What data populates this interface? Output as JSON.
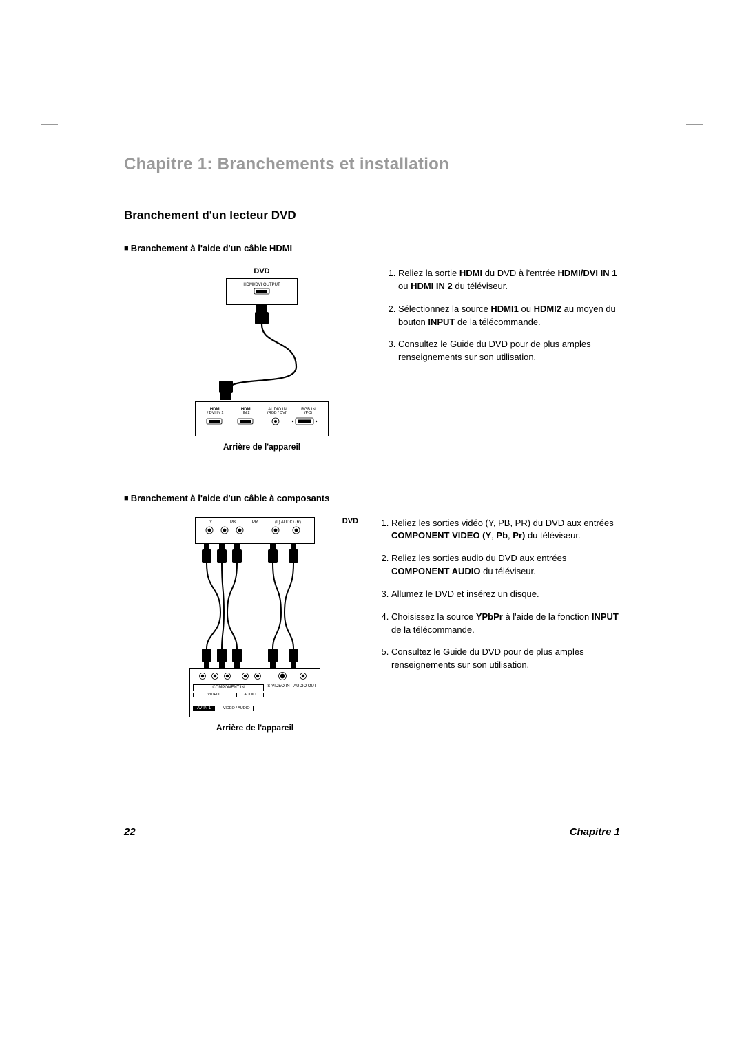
{
  "page": {
    "chapter_title": "Chapitre 1: Branchements et installation",
    "section_title": "Branchement d'un lecteur DVD",
    "page_number": "22",
    "footer_chapter": "Chapitre 1"
  },
  "hdmi_section": {
    "title": "Branchement à l'aide d'un câble HDMI",
    "diagram": {
      "top_label": "DVD",
      "output_label": "HDMI/DVI OUTPUT",
      "ports": {
        "p1_top": "HDMI",
        "p1_bot": "/ DVI IN 1",
        "p2_top": "HDMI",
        "p2_bot": "IN 2",
        "p3_top": "AUDIO IN",
        "p3_bot": "(RGB / DVI)",
        "p4_top": "RGB IN",
        "p4_bot": "(PC)"
      },
      "caption": "Arrière de l'appareil"
    },
    "steps": [
      "Reliez la sortie <b>HDMI</b> du DVD à l'entrée <b>HDMI/DVI IN 1</b> ou <b>HDMI IN 2</b> du téléviseur.",
      "Sélectionnez la source <b>HDMI1</b> ou <b>HDMI2</b> au moyen du bouton <b>INPUT</b> de la télécommande.",
      "Consultez le Guide du DVD pour de plus amples renseignements sur son utilisation."
    ]
  },
  "component_section": {
    "title": "Branchement à l'aide d'un câble à composants",
    "diagram": {
      "top_label": "DVD",
      "top_ports": [
        "Y",
        "PB",
        "PR"
      ],
      "top_audio": "(L) AUDIO (R)",
      "bot_row1": [
        "COMPONENT IN",
        "S-VIDEO IN",
        "AUDIO OUT"
      ],
      "bot_row2_box1": "VIDEO",
      "bot_row2_box2": "AUDIO",
      "bot_av": "AV IN 1",
      "bot_av_sub": "VIDEO / AUDIO",
      "caption": "Arrière de l'appareil"
    },
    "steps": [
      "Reliez les sorties vidéo (Y, PB, PR) du DVD aux entrées <b>COMPONENT VIDEO (Y</b>, <b>Pb</b>, <b>Pr)</b> du téléviseur.",
      "Reliez les sorties audio du DVD aux entrées <b>COMPONENT AUDIO</b> du téléviseur.",
      "Allumez le DVD et insérez un disque.",
      "Choisissez la source <b>YPbPr</b> à l'aide de la fonction <b>INPUT</b> de la télécommande.",
      "Consultez le Guide du DVD pour de plus amples renseignements sur son utilisation."
    ]
  },
  "colors": {
    "title_gray": "#9a9a9a",
    "text": "#000000",
    "bg": "#ffffff",
    "line": "#000000"
  }
}
